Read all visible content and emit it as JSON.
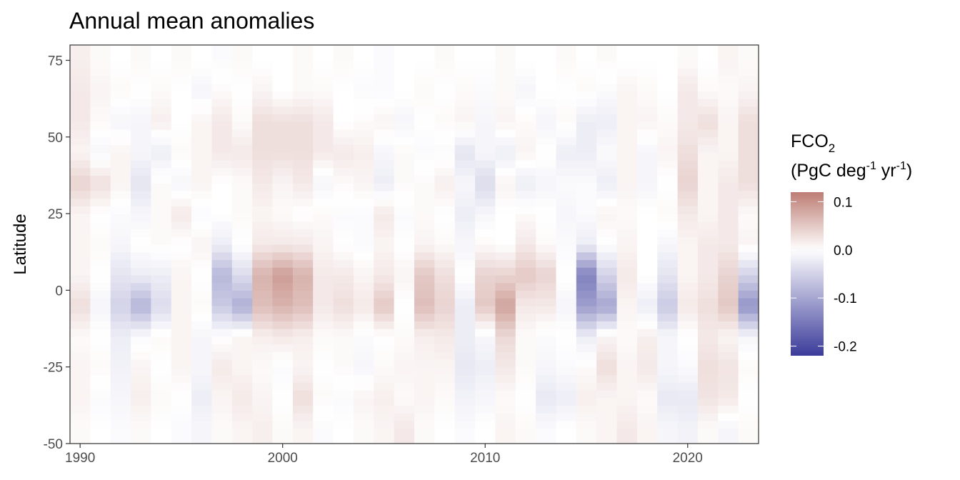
{
  "chart_data": {
    "type": "heatmap",
    "title": "Annual mean anomalies",
    "xlabel": "",
    "ylabel": "Latitude",
    "xlim": [
      1989.5,
      2023.5
    ],
    "ylim": [
      -50,
      80
    ],
    "x_ticks": [
      "1990",
      "2000",
      "2010",
      "2020"
    ],
    "y_ticks": [
      "75",
      "50",
      "25",
      "0",
      "-25",
      "-50"
    ],
    "years": [
      1990,
      1991,
      1992,
      1993,
      1994,
      1995,
      1996,
      1997,
      1998,
      1999,
      2000,
      2001,
      2002,
      2003,
      2004,
      2005,
      2006,
      2007,
      2008,
      2009,
      2010,
      2011,
      2012,
      2013,
      2014,
      2015,
      2016,
      2017,
      2018,
      2019,
      2020,
      2021,
      2022,
      2023
    ],
    "lat_bands": [
      {
        "lat": -45,
        "values": [
          0.005,
          0.0,
          -0.005,
          0.005,
          0.0,
          -0.005,
          -0.01,
          0.005,
          0.01,
          0.015,
          0.005,
          0.01,
          -0.005,
          0.0,
          0.005,
          0.01,
          0.02,
          0.005,
          0.0,
          -0.005,
          0.0,
          0.01,
          0.005,
          -0.005,
          0.0,
          0.005,
          0.01,
          0.02,
          0.01,
          -0.01,
          -0.015,
          0.005,
          -0.01,
          0.005
        ]
      },
      {
        "lat": -35,
        "values": [
          0.01,
          -0.005,
          -0.01,
          0.015,
          0.005,
          0.0,
          -0.02,
          0.01,
          0.02,
          0.01,
          0.0,
          0.03,
          0.005,
          -0.005,
          0.01,
          0.015,
          0.005,
          0.01,
          0.005,
          -0.015,
          -0.01,
          0.005,
          0.0,
          -0.025,
          -0.02,
          0.015,
          0.01,
          0.01,
          0.005,
          -0.025,
          -0.025,
          0.025,
          0.02,
          0.0
        ]
      },
      {
        "lat": -25,
        "values": [
          0.01,
          0.005,
          -0.015,
          0.01,
          0.0,
          0.01,
          -0.01,
          0.02,
          0.01,
          0.005,
          -0.005,
          0.01,
          0.0,
          0.005,
          -0.01,
          0.005,
          0.01,
          0.01,
          0.01,
          -0.025,
          -0.02,
          0.02,
          0.005,
          -0.01,
          -0.005,
          0.005,
          0.03,
          0.01,
          0.02,
          -0.01,
          -0.005,
          0.03,
          0.025,
          0.005
        ]
      },
      {
        "lat": -15,
        "values": [
          0.005,
          0.0,
          -0.02,
          -0.005,
          0.005,
          0.01,
          -0.01,
          0.0,
          0.01,
          0.015,
          0.02,
          0.015,
          0.005,
          0.005,
          -0.005,
          0.0,
          0.005,
          0.015,
          0.02,
          -0.02,
          -0.01,
          0.035,
          0.005,
          -0.005,
          0.0,
          -0.02,
          0.01,
          0.005,
          0.015,
          -0.01,
          0.0,
          0.02,
          0.01,
          -0.01
        ]
      },
      {
        "lat": -5,
        "values": [
          0.03,
          -0.01,
          -0.05,
          -0.085,
          -0.04,
          0.01,
          0.005,
          -0.06,
          -0.09,
          0.06,
          0.07,
          0.06,
          0.02,
          0.03,
          0.02,
          0.05,
          0.0,
          0.06,
          0.04,
          -0.02,
          0.05,
          0.085,
          0.02,
          0.02,
          -0.01,
          -0.11,
          -0.1,
          0.01,
          -0.02,
          -0.06,
          0.02,
          0.03,
          0.05,
          -0.12
        ]
      },
      {
        "lat": 5,
        "values": [
          0.01,
          0.0,
          -0.03,
          -0.02,
          -0.02,
          0.01,
          0.0,
          -0.08,
          -0.04,
          0.07,
          0.09,
          0.07,
          0.02,
          0.02,
          0.01,
          0.02,
          0.01,
          0.05,
          0.03,
          0.0,
          0.04,
          0.04,
          0.05,
          0.04,
          0.0,
          -0.14,
          -0.05,
          0.02,
          0.0,
          -0.03,
          0.01,
          0.02,
          0.04,
          -0.05
        ]
      },
      {
        "lat": 15,
        "values": [
          0.01,
          0.005,
          -0.01,
          0.0,
          0.005,
          0.0,
          0.01,
          -0.02,
          0.0,
          0.02,
          0.02,
          0.02,
          0.01,
          0.0,
          -0.005,
          0.01,
          0.0,
          0.01,
          0.005,
          -0.01,
          0.005,
          0.0,
          0.02,
          0.005,
          -0.005,
          -0.02,
          0.0,
          0.01,
          0.0,
          -0.01,
          0.01,
          0.02,
          0.02,
          0.01
        ]
      },
      {
        "lat": 25,
        "values": [
          0.01,
          0.0,
          -0.005,
          -0.01,
          0.005,
          0.02,
          -0.005,
          0.0,
          0.005,
          0.01,
          0.005,
          0.0,
          0.005,
          -0.005,
          -0.005,
          0.02,
          -0.005,
          0.005,
          0.0,
          -0.02,
          -0.01,
          0.0,
          0.005,
          0.0,
          -0.01,
          -0.005,
          0.01,
          0.005,
          0.0,
          0.005,
          0.02,
          0.01,
          0.02,
          0.005
        ]
      },
      {
        "lat": 35,
        "values": [
          0.04,
          0.03,
          0.01,
          -0.03,
          0.005,
          -0.01,
          0.01,
          0.0,
          0.005,
          0.02,
          0.01,
          0.02,
          -0.01,
          0.005,
          0.01,
          -0.02,
          0.005,
          0.005,
          0.015,
          -0.01,
          -0.04,
          0.01,
          -0.02,
          -0.01,
          -0.005,
          -0.005,
          -0.02,
          0.01,
          -0.01,
          0.0,
          0.04,
          0.01,
          0.02,
          0.03
        ]
      },
      {
        "lat": 45,
        "values": [
          0.01,
          -0.01,
          0.01,
          -0.01,
          -0.02,
          0.005,
          0.01,
          0.02,
          0.02,
          0.03,
          0.03,
          0.03,
          0.02,
          0.02,
          0.015,
          -0.01,
          0.005,
          -0.005,
          -0.005,
          -0.03,
          -0.01,
          -0.02,
          0.01,
          0.0,
          -0.02,
          -0.02,
          -0.005,
          0.01,
          -0.01,
          0.01,
          0.03,
          0.01,
          0.01,
          0.03
        ]
      },
      {
        "lat": 55,
        "values": [
          0.02,
          0.005,
          -0.01,
          -0.01,
          0.015,
          0.0,
          0.01,
          0.02,
          0.005,
          0.03,
          0.03,
          0.03,
          0.02,
          0.0,
          0.005,
          0.01,
          -0.01,
          0.0,
          0.005,
          0.01,
          -0.01,
          0.01,
          0.005,
          -0.01,
          0.005,
          -0.02,
          -0.02,
          0.01,
          0.01,
          0.005,
          0.02,
          0.03,
          0.01,
          0.03
        ]
      },
      {
        "lat": 65,
        "values": [
          0.02,
          0.01,
          0.005,
          0.0,
          0.005,
          0.0,
          -0.01,
          0.005,
          0.0,
          0.01,
          0.0,
          0.005,
          0.005,
          0.0,
          -0.005,
          -0.005,
          0.0,
          0.005,
          0.0,
          0.005,
          -0.005,
          0.005,
          -0.01,
          0.0,
          0.0,
          0.005,
          -0.005,
          0.01,
          0.005,
          0.0,
          0.02,
          0.005,
          0.005,
          0.01
        ]
      },
      {
        "lat": 75,
        "values": [
          0.015,
          0.005,
          0.0,
          0.005,
          0.0,
          0.005,
          0.0,
          -0.005,
          0.005,
          0.0,
          0.0,
          0.005,
          0.0,
          0.005,
          0.0,
          -0.005,
          0.0,
          0.0,
          0.005,
          0.0,
          0.0,
          0.005,
          0.0,
          0.0,
          0.005,
          0.0,
          0.005,
          0.0,
          0.0,
          0.0,
          0.005,
          0.0,
          0.01,
          0.005
        ]
      }
    ],
    "color_scale": {
      "low": "#3b3b9a",
      "mid": "#ffffff",
      "high": "#bd7d74",
      "min": -0.22,
      "max": 0.12
    },
    "legend": {
      "title_main": "FCO",
      "title_sub": "2",
      "unit_pre": "(PgC deg",
      "unit_sup1": "-1",
      "unit_mid": " yr",
      "unit_sup2": "-1",
      "unit_post": ")",
      "ticks": [
        0.1,
        0.0,
        -0.1,
        -0.2
      ],
      "tick_labels": [
        "0.1",
        "0.0",
        "-0.1",
        "-0.2"
      ],
      "position": "right"
    }
  }
}
